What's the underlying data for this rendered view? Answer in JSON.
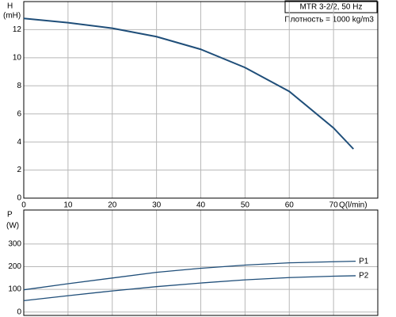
{
  "chart_data": [
    {
      "type": "line",
      "title": "MTR 3-2/2, 50 Hz",
      "subtitle": "Плотность = 1000 kg/m3",
      "y_label": "H",
      "y_unit": "(mH)",
      "x_label": "Q(l/min)",
      "x": [
        0,
        10,
        20,
        30,
        40,
        50,
        60,
        70,
        74.5
      ],
      "series": [
        {
          "color": "#1f4e79",
          "values": [
            12.8,
            12.5,
            12.1,
            11.5,
            10.6,
            9.3,
            7.6,
            5.0,
            3.5
          ]
        }
      ],
      "xlim": [
        0,
        80
      ],
      "xticks": [
        0,
        10,
        20,
        30,
        40,
        50,
        60,
        70
      ],
      "ylim": [
        0,
        14
      ],
      "yticks": [
        0,
        2,
        4,
        6,
        8,
        10,
        12
      ],
      "grid": true
    },
    {
      "type": "line",
      "y_label": "P",
      "y_unit": "(W)",
      "x": [
        0,
        10,
        20,
        30,
        40,
        50,
        60,
        70,
        75
      ],
      "series": [
        {
          "name": "P1",
          "color": "#1f4e79",
          "values": [
            98,
            125,
            150,
            175,
            193,
            207,
            217,
            222,
            224
          ]
        },
        {
          "name": "P2",
          "color": "#1f4e79",
          "values": [
            50,
            72,
            93,
            112,
            128,
            142,
            152,
            158,
            160
          ]
        }
      ],
      "xlim": [
        0,
        80
      ],
      "ylim": [
        -15,
        450
      ],
      "yticks": [
        0,
        100,
        200,
        300
      ],
      "grid": true
    }
  ]
}
